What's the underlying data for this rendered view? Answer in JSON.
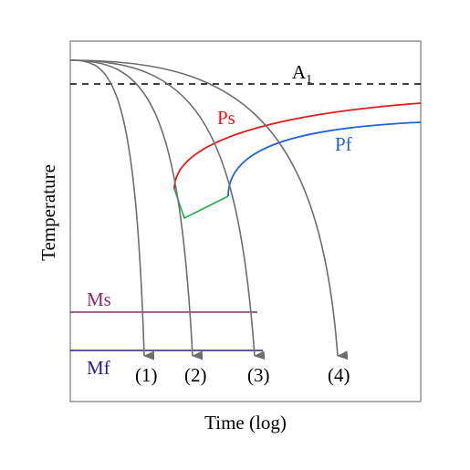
{
  "axes": {
    "xlabel": "Time (log)",
    "ylabel": "Temperature"
  },
  "lines": {
    "a1": {
      "label": "A",
      "subscript": "1",
      "color": "#000000"
    },
    "ms": {
      "label": "Ms",
      "color": "#8b2a6e"
    },
    "mf": {
      "label": "Mf",
      "color": "#2a1e8a"
    }
  },
  "curves": {
    "ps": {
      "label": "Ps",
      "color": "#e01b1b"
    },
    "pf": {
      "label": "Pf",
      "color": "#1f63d6"
    },
    "connector": {
      "color": "#22b14c"
    }
  },
  "cooling_paths": {
    "color": "#6e6e6e",
    "labels": [
      "(1)",
      "(2)",
      "(3)",
      "(4)"
    ]
  }
}
